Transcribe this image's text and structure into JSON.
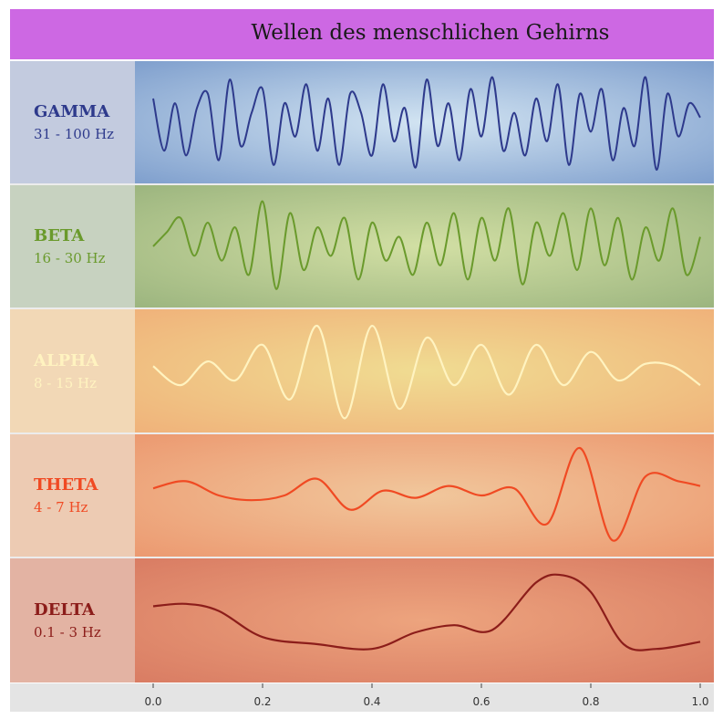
{
  "header": {
    "title": "Wellen des menschlichen Gehirns"
  },
  "bands": [
    {
      "name": "GAMMA",
      "range": "31 - 100 Hz",
      "color": "#2e3a8c",
      "label_bg": "#c3cbdf",
      "plot_bg_center": "#d2e4f2",
      "plot_bg_edge": "#7f9fcd"
    },
    {
      "name": "BETA",
      "range": "16 - 30 Hz",
      "color": "#6a9a2c",
      "label_bg": "#c7d2c0",
      "plot_bg_center": "#d2dfa4",
      "plot_bg_edge": "#9cb57f"
    },
    {
      "name": "ALPHA",
      "range": "8 - 15 Hz",
      "color": "#fff3c0",
      "label_bg": "#f2d8b6",
      "plot_bg_center": "#f0dc92",
      "plot_bg_edge": "#f0b27a"
    },
    {
      "name": "THETA",
      "range": "4 - 7 Hz",
      "color": "#f04a23",
      "label_bg": "#edcbb3",
      "plot_bg_center": "#f1c79c",
      "plot_bg_edge": "#ec9970"
    },
    {
      "name": "DELTA",
      "range": "0.1 - 3 Hz",
      "color": "#8c1d1a",
      "label_bg": "#e3b3a3",
      "plot_bg_center": "#eda47e",
      "plot_bg_edge": "#d97c63"
    }
  ],
  "chart_data": {
    "type": "line",
    "title": "Wellen des menschlichen Gehirns",
    "xlabel": "",
    "ylabel": "",
    "xlim": [
      0.0,
      1.0
    ],
    "x_ticks": [
      "0.0",
      "0.2",
      "0.4",
      "0.6",
      "0.8",
      "1.0"
    ],
    "grid": false,
    "series": [
      {
        "name": "GAMMA",
        "x": [
          0,
          0.02,
          0.04,
          0.06,
          0.08,
          0.1,
          0.12,
          0.14,
          0.16,
          0.18,
          0.2,
          0.22,
          0.24,
          0.26,
          0.28,
          0.3,
          0.32,
          0.34,
          0.36,
          0.38,
          0.4,
          0.42,
          0.44,
          0.46,
          0.48,
          0.5,
          0.52,
          0.54,
          0.56,
          0.58,
          0.6,
          0.62,
          0.64,
          0.66,
          0.68,
          0.7,
          0.72,
          0.74,
          0.76,
          0.78,
          0.8,
          0.82,
          0.84,
          0.86,
          0.88,
          0.9,
          0.92,
          0.94,
          0.96,
          0.98,
          1.0
        ],
        "y": [
          0.5,
          -0.6,
          0.4,
          -0.7,
          0.3,
          0.6,
          -0.8,
          0.9,
          -0.5,
          0.2,
          0.7,
          -0.9,
          0.4,
          -0.3,
          0.8,
          -0.6,
          0.5,
          -0.9,
          0.6,
          0.2,
          -0.7,
          0.8,
          -0.4,
          0.3,
          -0.95,
          0.9,
          -0.5,
          0.4,
          -0.8,
          0.7,
          -0.3,
          0.95,
          -0.6,
          0.2,
          -0.7,
          0.5,
          -0.4,
          0.8,
          -0.9,
          0.6,
          -0.2,
          0.7,
          -0.8,
          0.3,
          -0.5,
          0.95,
          -1.0,
          0.6,
          -0.3,
          0.4,
          0.1
        ]
      },
      {
        "name": "BETA",
        "x": [
          0,
          0.025,
          0.05,
          0.075,
          0.1,
          0.125,
          0.15,
          0.175,
          0.2,
          0.225,
          0.25,
          0.275,
          0.3,
          0.325,
          0.35,
          0.375,
          0.4,
          0.425,
          0.45,
          0.475,
          0.5,
          0.525,
          0.55,
          0.575,
          0.6,
          0.625,
          0.65,
          0.675,
          0.7,
          0.725,
          0.75,
          0.775,
          0.8,
          0.825,
          0.85,
          0.875,
          0.9,
          0.925,
          0.95,
          0.975,
          1.0
        ],
        "y": [
          0.0,
          0.3,
          0.6,
          -0.2,
          0.5,
          -0.3,
          0.4,
          -0.6,
          0.95,
          -0.9,
          0.7,
          -0.5,
          0.4,
          -0.2,
          0.6,
          -0.7,
          0.5,
          -0.3,
          0.2,
          -0.6,
          0.5,
          -0.4,
          0.7,
          -0.7,
          0.6,
          -0.3,
          0.8,
          -0.8,
          0.5,
          -0.2,
          0.7,
          -0.5,
          0.8,
          -0.4,
          0.6,
          -0.7,
          0.4,
          -0.3,
          0.8,
          -0.6,
          0.2
        ]
      },
      {
        "name": "ALPHA",
        "x": [
          0,
          0.05,
          0.1,
          0.15,
          0.2,
          0.25,
          0.3,
          0.35,
          0.4,
          0.45,
          0.5,
          0.55,
          0.6,
          0.65,
          0.7,
          0.75,
          0.8,
          0.85,
          0.9,
          0.95,
          1.0
        ],
        "y": [
          0.1,
          -0.3,
          0.2,
          -0.2,
          0.55,
          -0.6,
          0.95,
          -1.0,
          0.95,
          -0.8,
          0.7,
          -0.3,
          0.55,
          -0.5,
          0.55,
          -0.3,
          0.4,
          -0.2,
          0.15,
          0.1,
          -0.3
        ]
      },
      {
        "name": "THETA",
        "x": [
          0,
          0.06,
          0.12,
          0.18,
          0.24,
          0.3,
          0.36,
          0.42,
          0.48,
          0.54,
          0.6,
          0.66,
          0.72,
          0.78,
          0.84,
          0.9,
          0.96,
          1.0
        ],
        "y": [
          0.15,
          0.3,
          0.0,
          -0.1,
          0.0,
          0.35,
          -0.3,
          0.1,
          -0.05,
          0.2,
          0.0,
          0.15,
          -0.6,
          1.0,
          -0.95,
          0.4,
          0.3,
          0.2
        ]
      },
      {
        "name": "DELTA",
        "x": [
          0,
          0.06,
          0.12,
          0.2,
          0.3,
          0.4,
          0.48,
          0.55,
          0.62,
          0.7,
          0.75,
          0.8,
          0.86,
          0.92,
          1.0
        ],
        "y": [
          0.3,
          0.35,
          0.2,
          -0.35,
          -0.5,
          -0.6,
          -0.25,
          -0.1,
          -0.2,
          0.8,
          0.95,
          0.6,
          -0.5,
          -0.6,
          -0.45
        ]
      }
    ]
  }
}
